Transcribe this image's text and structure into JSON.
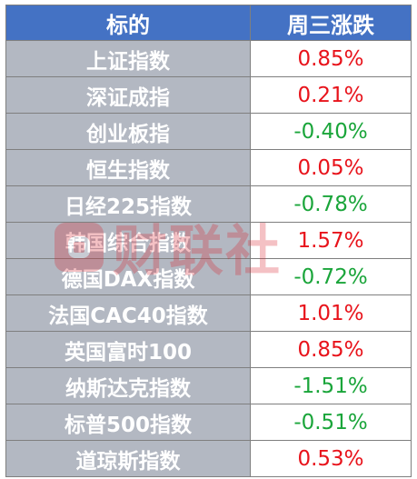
{
  "header": {
    "col_name": "标的",
    "col_change": "周三涨跌"
  },
  "rows": [
    {
      "name": "上证指数",
      "change": "0.85%",
      "direction": "up"
    },
    {
      "name": "深证成指",
      "change": "0.21%",
      "direction": "up"
    },
    {
      "name": "创业板指",
      "change": "-0.40%",
      "direction": "down"
    },
    {
      "name": "恒生指数",
      "change": "0.05%",
      "direction": "up"
    },
    {
      "name": "日经225指数",
      "change": "-0.78%",
      "direction": "down"
    },
    {
      "name": "韩国综合指数",
      "change": "1.57%",
      "direction": "up"
    },
    {
      "name": "德国DAX指数",
      "change": "-0.72%",
      "direction": "down"
    },
    {
      "name": "法国CAC40指数",
      "change": "1.01%",
      "direction": "up"
    },
    {
      "name": "英国富时100",
      "change": "0.85%",
      "direction": "up"
    },
    {
      "name": "纳斯达克指数",
      "change": "-1.51%",
      "direction": "down"
    },
    {
      "name": "标普500指数",
      "change": "-0.51%",
      "direction": "down"
    },
    {
      "name": "道琼斯指数",
      "change": "0.53%",
      "direction": "up"
    }
  ],
  "watermark": {
    "text": "财联社"
  },
  "colors": {
    "header_bg": "#4472c4",
    "name_bg": "#b3b8c2",
    "up": "#e8131b",
    "down": "#1aa53a"
  }
}
